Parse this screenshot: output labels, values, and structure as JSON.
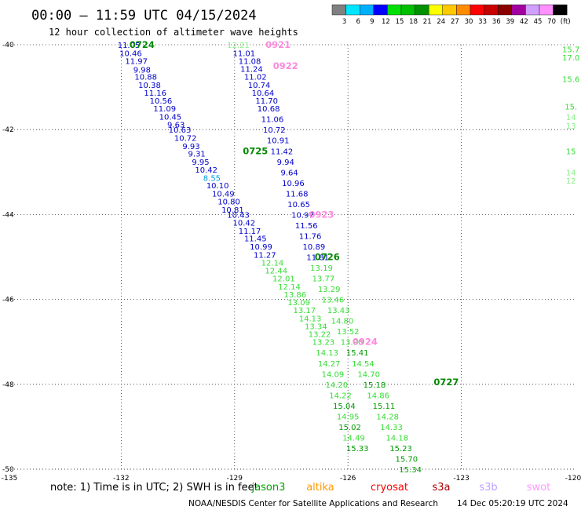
{
  "header": {
    "title": "00:00 — 11:59 UTC 04/15/2024",
    "subtitle": "12 hour collection of altimeter wave heights"
  },
  "colorbar": {
    "labels": [
      "3",
      "6",
      "9",
      "12",
      "15",
      "18",
      "21",
      "24",
      "27",
      "30",
      "33",
      "36",
      "39",
      "42",
      "45",
      "70",
      "(ft)"
    ],
    "colors": [
      "#808080",
      "#00e5ff",
      "#00b0ff",
      "#0000ff",
      "#00e000",
      "#00c000",
      "#009000",
      "#ffff00",
      "#ffc800",
      "#ff8c00",
      "#ff0000",
      "#c80000",
      "#8b0000",
      "#a000a0",
      "#d0a0ff",
      "#ff90ff",
      "#000000"
    ]
  },
  "note": {
    "text": "note:  1) Time is in UTC;  2) SWH is in feet",
    "satellites": [
      {
        "name": "jason3",
        "color": "#00a000"
      },
      {
        "name": "altika",
        "color": "#ff9900"
      },
      {
        "name": "cryosat",
        "color": "#ff0000"
      },
      {
        "name": "s3a",
        "color": "#aa0000"
      },
      {
        "name": "s3b",
        "color": "#c0a0ff"
      },
      {
        "name": "swot",
        "color": "#ff99ff"
      }
    ]
  },
  "footer": {
    "credit": "NOAA/NESDIS Center for Satellite Applications and Research",
    "timestamp": "14 Dec 05:20:19 UTC 2024"
  },
  "chart_data": {
    "type": "scatter",
    "xlim": [
      -135,
      -120
    ],
    "ylim": [
      -50,
      -40
    ],
    "x_ticks": [
      "-135",
      "-132",
      "-129",
      "-126",
      "-123",
      "-120"
    ],
    "y_ticks": [
      "-40",
      "-42",
      "-44",
      "-46",
      "-48",
      "-50"
    ],
    "grid": true,
    "track_a": {
      "points": [
        {
          "x": -131.8,
          "y": -40.0,
          "v": "11.05",
          "c": "#0000cc"
        },
        {
          "x": -131.75,
          "y": -40.19,
          "v": "10.46",
          "c": "#0000cc"
        },
        {
          "x": -131.6,
          "y": -40.38,
          "v": "11.97",
          "c": "#0000cc"
        },
        {
          "x": -131.45,
          "y": -40.58,
          "v": "9.98",
          "c": "#0000cc"
        },
        {
          "x": -131.35,
          "y": -40.75,
          "v": "10.88",
          "c": "#0000cc"
        },
        {
          "x": -131.25,
          "y": -40.94,
          "v": "10.38",
          "c": "#0000cc"
        },
        {
          "x": -131.1,
          "y": -41.13,
          "v": "11.16",
          "c": "#0000cc"
        },
        {
          "x": -130.95,
          "y": -41.31,
          "v": "10.56",
          "c": "#0000cc"
        },
        {
          "x": -130.85,
          "y": -41.5,
          "v": "11.09",
          "c": "#0000cc"
        },
        {
          "x": -130.7,
          "y": -41.69,
          "v": "10.45",
          "c": "#0000cc"
        },
        {
          "x": -130.55,
          "y": -41.88,
          "v": "9.63",
          "c": "#0000cc"
        },
        {
          "x": -130.45,
          "y": -42.0,
          "v": "10.63",
          "c": "#0000cc"
        },
        {
          "x": -130.3,
          "y": -42.19,
          "v": "10.72",
          "c": "#0000cc"
        },
        {
          "x": -130.15,
          "y": -42.38,
          "v": "9.93",
          "c": "#0000cc"
        },
        {
          "x": -130.0,
          "y": -42.56,
          "v": "9.31",
          "c": "#0000cc"
        },
        {
          "x": -129.9,
          "y": -42.75,
          "v": "9.95",
          "c": "#0000cc"
        },
        {
          "x": -129.75,
          "y": -42.94,
          "v": "10.42",
          "c": "#0000cc"
        },
        {
          "x": -129.6,
          "y": -43.13,
          "v": "8.55",
          "c": "#00a0e0"
        },
        {
          "x": -129.45,
          "y": -43.31,
          "v": "10.10",
          "c": "#0000cc"
        },
        {
          "x": -129.3,
          "y": -43.5,
          "v": "10.49",
          "c": "#0000cc"
        },
        {
          "x": -129.15,
          "y": -43.69,
          "v": "10.80",
          "c": "#0000cc"
        },
        {
          "x": -129.05,
          "y": -43.88,
          "v": "10.81",
          "c": "#0000cc"
        },
        {
          "x": -128.9,
          "y": -44.0,
          "v": "10.43",
          "c": "#0000cc"
        },
        {
          "x": -128.75,
          "y": -44.19,
          "v": "10.42",
          "c": "#0000cc"
        },
        {
          "x": -128.6,
          "y": -44.38,
          "v": "11.17",
          "c": "#0000cc"
        },
        {
          "x": -128.45,
          "y": -44.56,
          "v": "11.45",
          "c": "#0000cc"
        },
        {
          "x": -128.3,
          "y": -44.75,
          "v": "10.99",
          "c": "#0000cc"
        },
        {
          "x": -128.2,
          "y": -44.94,
          "v": "11.27",
          "c": "#0000cc"
        },
        {
          "x": -128.0,
          "y": -45.13,
          "v": "12.14",
          "c": "#33dd33"
        },
        {
          "x": -127.9,
          "y": -45.31,
          "v": "12.44",
          "c": "#33dd33"
        },
        {
          "x": -127.7,
          "y": -45.5,
          "v": "12.01",
          "c": "#33dd33"
        },
        {
          "x": -127.55,
          "y": -45.69,
          "v": "12.14",
          "c": "#33dd33"
        },
        {
          "x": -127.4,
          "y": -45.88,
          "v": "13.86",
          "c": "#33dd33"
        },
        {
          "x": -127.3,
          "y": -46.06,
          "v": "13.09",
          "c": "#33dd33"
        },
        {
          "x": -127.15,
          "y": -46.25,
          "v": "13.17",
          "c": "#33dd33"
        },
        {
          "x": -127.0,
          "y": -46.44,
          "v": "14.13",
          "c": "#33dd33"
        },
        {
          "x": -126.85,
          "y": -46.63,
          "v": "13.34",
          "c": "#33dd33"
        },
        {
          "x": -126.75,
          "y": -46.81,
          "v": "13.22",
          "c": "#33dd33"
        },
        {
          "x": -126.65,
          "y": -47.0,
          "v": "13.23",
          "c": "#33dd33"
        },
        {
          "x": -126.55,
          "y": -47.25,
          "v": "14.13",
          "c": "#33dd33"
        },
        {
          "x": -126.5,
          "y": -47.5,
          "v": "14.27",
          "c": "#33dd33"
        },
        {
          "x": -126.4,
          "y": -47.75,
          "v": "14.09",
          "c": "#33dd33"
        },
        {
          "x": -126.3,
          "y": -48.0,
          "v": "14.20",
          "c": "#33dd33"
        },
        {
          "x": -126.2,
          "y": -48.25,
          "v": "14.22",
          "c": "#33dd33"
        },
        {
          "x": -126.1,
          "y": -48.5,
          "v": "15.04",
          "c": "#009900"
        },
        {
          "x": -126.0,
          "y": -48.75,
          "v": "14.95",
          "c": "#33dd33"
        },
        {
          "x": -125.95,
          "y": -49.0,
          "v": "15.02",
          "c": "#009900"
        },
        {
          "x": -125.85,
          "y": -49.25,
          "v": "14.49",
          "c": "#33dd33"
        },
        {
          "x": -125.75,
          "y": -49.5,
          "v": "15.33",
          "c": "#009900"
        }
      ]
    },
    "track_b": {
      "points": [
        {
          "x": -128.9,
          "y": -40.0,
          "v": "12.21",
          "c": "#88ee88"
        },
        {
          "x": -128.75,
          "y": -40.19,
          "v": "11.01",
          "c": "#0000cc"
        },
        {
          "x": -128.6,
          "y": -40.38,
          "v": "11.08",
          "c": "#0000cc"
        },
        {
          "x": -128.55,
          "y": -40.56,
          "v": "11.24",
          "c": "#0000cc"
        },
        {
          "x": -128.45,
          "y": -40.75,
          "v": "11.02",
          "c": "#0000cc"
        },
        {
          "x": -128.35,
          "y": -40.94,
          "v": "10.74",
          "c": "#0000cc"
        },
        {
          "x": -128.25,
          "y": -41.13,
          "v": "10.64",
          "c": "#0000cc"
        },
        {
          "x": -128.15,
          "y": -41.31,
          "v": "11.70",
          "c": "#0000cc"
        },
        {
          "x": -128.1,
          "y": -41.5,
          "v": "10.68",
          "c": "#0000cc"
        },
        {
          "x": -128.0,
          "y": -41.75,
          "v": "11.06",
          "c": "#0000cc"
        },
        {
          "x": -127.95,
          "y": -42.0,
          "v": "10.72",
          "c": "#0000cc"
        },
        {
          "x": -127.85,
          "y": -42.25,
          "v": "10.91",
          "c": "#0000cc"
        },
        {
          "x": -127.75,
          "y": -42.5,
          "v": "11.42",
          "c": "#0000cc"
        },
        {
          "x": -127.65,
          "y": -42.75,
          "v": "9.94",
          "c": "#0000cc"
        },
        {
          "x": -127.55,
          "y": -43.0,
          "v": "9.64",
          "c": "#0000cc"
        },
        {
          "x": -127.45,
          "y": -43.25,
          "v": "10.96",
          "c": "#0000cc"
        },
        {
          "x": -127.35,
          "y": -43.5,
          "v": "11.68",
          "c": "#0000cc"
        },
        {
          "x": -127.3,
          "y": -43.75,
          "v": "10.65",
          "c": "#0000cc"
        },
        {
          "x": -127.2,
          "y": -44.0,
          "v": "10.97",
          "c": "#0000cc"
        },
        {
          "x": -127.1,
          "y": -44.25,
          "v": "11.56",
          "c": "#0000cc"
        },
        {
          "x": -127.0,
          "y": -44.5,
          "v": "11.76",
          "c": "#0000cc"
        },
        {
          "x": -126.9,
          "y": -44.75,
          "v": "10.89",
          "c": "#0000cc"
        },
        {
          "x": -126.8,
          "y": -45.0,
          "v": "11.81",
          "c": "#0000cc"
        },
        {
          "x": -126.7,
          "y": -45.25,
          "v": "13.19",
          "c": "#33dd33"
        },
        {
          "x": -126.65,
          "y": -45.5,
          "v": "13.77",
          "c": "#33dd33"
        },
        {
          "x": -126.5,
          "y": -45.75,
          "v": "13.29",
          "c": "#33dd33"
        },
        {
          "x": -126.4,
          "y": -46.0,
          "v": "13.46",
          "c": "#33dd33"
        },
        {
          "x": -126.25,
          "y": -46.25,
          "v": "13.43",
          "c": "#33dd33"
        },
        {
          "x": -126.15,
          "y": -46.5,
          "v": "14.80",
          "c": "#33dd33"
        },
        {
          "x": -126.0,
          "y": -46.75,
          "v": "13.52",
          "c": "#33dd33"
        },
        {
          "x": -125.9,
          "y": -47.0,
          "v": "13.90",
          "c": "#33dd33"
        },
        {
          "x": -125.75,
          "y": -47.25,
          "v": "15.41",
          "c": "#009900"
        },
        {
          "x": -125.6,
          "y": -47.5,
          "v": "14.54",
          "c": "#33dd33"
        },
        {
          "x": -125.45,
          "y": -47.75,
          "v": "14.70",
          "c": "#33dd33"
        },
        {
          "x": -125.3,
          "y": -48.0,
          "v": "15.18",
          "c": "#009900"
        },
        {
          "x": -125.2,
          "y": -48.25,
          "v": "14.86",
          "c": "#33dd33"
        },
        {
          "x": -125.05,
          "y": -48.5,
          "v": "15.11",
          "c": "#009900"
        },
        {
          "x": -124.95,
          "y": -48.75,
          "v": "14.28",
          "c": "#33dd33"
        },
        {
          "x": -124.85,
          "y": -49.0,
          "v": "14.33",
          "c": "#33dd33"
        },
        {
          "x": -124.7,
          "y": -49.25,
          "v": "14.18",
          "c": "#33dd33"
        },
        {
          "x": -124.6,
          "y": -49.5,
          "v": "15.23",
          "c": "#009900"
        },
        {
          "x": -124.45,
          "y": -49.75,
          "v": "15.70",
          "c": "#009900"
        },
        {
          "x": -124.35,
          "y": -50.0,
          "v": "15.34",
          "c": "#009900"
        }
      ]
    },
    "track_c": {
      "points": [
        {
          "x": -120.1,
          "y": -40.1,
          "v": "15.7",
          "c": "#33dd33"
        },
        {
          "x": -120.1,
          "y": -40.3,
          "v": "17.0",
          "c": "#33dd33"
        },
        {
          "x": -120.1,
          "y": -40.8,
          "v": "15.6",
          "c": "#33dd33"
        },
        {
          "x": -120.1,
          "y": -41.45,
          "v": "15.",
          "c": "#33dd33"
        },
        {
          "x": -120.1,
          "y": -41.7,
          "v": "14",
          "c": "#88ee88"
        },
        {
          "x": -120.1,
          "y": -41.9,
          "v": "13",
          "c": "#88ee88"
        },
        {
          "x": -120.1,
          "y": -42.5,
          "v": "15",
          "c": "#33dd33"
        },
        {
          "x": -120.1,
          "y": -43.0,
          "v": "14",
          "c": "#88ee88"
        },
        {
          "x": -120.1,
          "y": -43.2,
          "v": "12",
          "c": "#88ee88"
        }
      ]
    },
    "time_labels": [
      {
        "x": -131.45,
        "y": -40.0,
        "t": "0724",
        "c": "#008800"
      },
      {
        "x": -127.85,
        "y": -40.0,
        "t": "0921",
        "c": "#ff88dd"
      },
      {
        "x": -127.65,
        "y": -40.5,
        "t": "0922",
        "c": "#ff88dd"
      },
      {
        "x": -128.45,
        "y": -42.5,
        "t": "0725",
        "c": "#008800"
      },
      {
        "x": -126.7,
        "y": -44.0,
        "t": "0923",
        "c": "#ff88dd"
      },
      {
        "x": -126.55,
        "y": -45.0,
        "t": "0726",
        "c": "#008800"
      },
      {
        "x": -125.55,
        "y": -47.0,
        "t": "0924",
        "c": "#ff88dd"
      },
      {
        "x": -123.4,
        "y": -47.95,
        "t": "0727",
        "c": "#008800"
      }
    ]
  }
}
